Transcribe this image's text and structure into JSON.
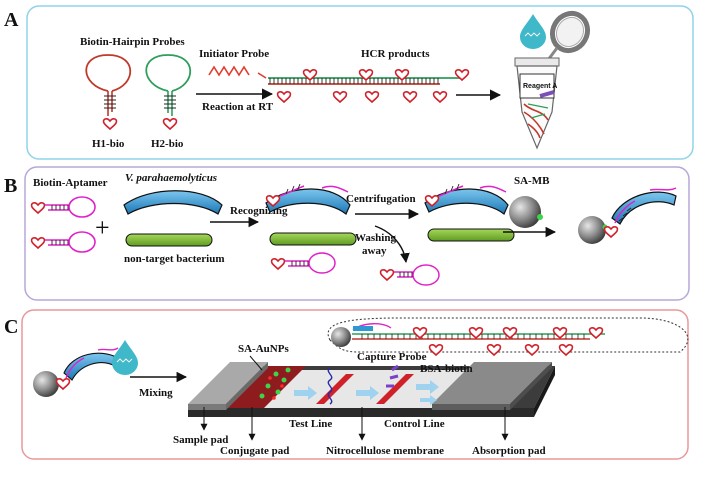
{
  "colors": {
    "panel_a_border": "#8fd3e8",
    "panel_b_border": "#b9a7d9",
    "panel_c_border": "#e8999a",
    "hairpin_red": "#c0392b",
    "hairpin_green": "#2e9e5b",
    "initiator_red": "#e23b2e",
    "aptamer_magenta": "#e022c8",
    "bacterium_blue": "#2e98d4",
    "nontarget_green": "#7dbb3a",
    "strip_red": "#d0212a",
    "arrow_light_blue": "#9fd2ee",
    "bead_gray": "#8c8c8c",
    "drop_teal": "#3fb8c9"
  },
  "panel_a": {
    "label": "A",
    "probes_title": "Biotin-Hairpin Probes",
    "h1_label": "H1-bio",
    "h2_label": "H2-bio",
    "initiator_label": "Initiator Probe",
    "reaction_label": "Reaction at RT",
    "hcr_label": "HCR products",
    "tube_label": "Reagent A"
  },
  "panel_b": {
    "label": "B",
    "aptamer_label": "Biotin-Aptamer",
    "target_label": "V. parahaemolyticus",
    "nontarget_label": "non-target  bacterium",
    "plus": "+",
    "recognizing_label": "Recognizing",
    "centrifugation_label": "Centrifugation",
    "washing_label_1": "Washing",
    "washing_label_2": "away",
    "samb_label": "SA-MB"
  },
  "panel_c": {
    "label": "C",
    "mixing_label": "Mixing",
    "auNP_label": "SA-AuNPs",
    "capture_label": "Capture Probe",
    "bsa_label": "BSA-biotin",
    "test_line_label": "Test Line",
    "control_line_label": "Control Line",
    "sample_pad_label": "Sample pad",
    "conjugate_pad_label": "Conjugate pad",
    "membrane_label": "Nitrocellulose membrane",
    "absorption_pad_label": "Absorption pad"
  }
}
